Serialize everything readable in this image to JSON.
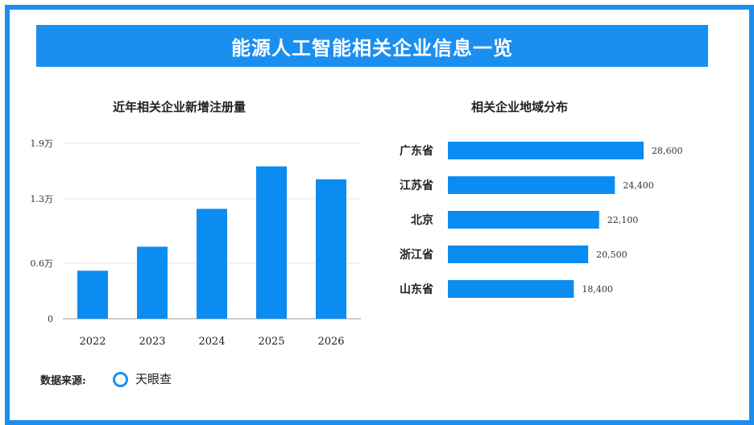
{
  "header": {
    "title": "能源人工智能相关企业信息一览"
  },
  "source": {
    "label": "数据来源:",
    "name": "天眼查",
    "logo_icon": "tianyancha-ring-logo"
  },
  "colors": {
    "accent": "#1a8ff0",
    "bar": "#0b8cf0"
  },
  "chart_data": [
    {
      "type": "bar",
      "title": "近年相关企业新增注册量",
      "categories": [
        "2022",
        "2023",
        "2024",
        "2025",
        "2026"
      ],
      "values": [
        5200,
        7800,
        11900,
        16500,
        15100
      ],
      "ylim": [
        0,
        19000
      ],
      "yticks": [
        0,
        6000,
        13000,
        19000
      ],
      "ytick_labels": [
        "0",
        "0.6万",
        "1.3万",
        "1.9万"
      ],
      "grid": true
    },
    {
      "type": "bar",
      "orientation": "horizontal",
      "title": "相关企业地域分布",
      "categories": [
        "广东省",
        "江苏省",
        "北京",
        "浙江省",
        "山东省"
      ],
      "values": [
        28600,
        24400,
        22100,
        20500,
        18400
      ],
      "value_labels": [
        "28,600",
        "24,400",
        "22,100",
        "20,500",
        "18,400"
      ]
    }
  ]
}
